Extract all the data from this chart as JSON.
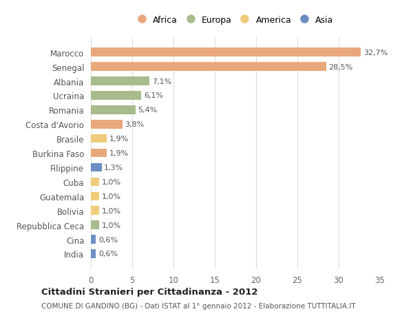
{
  "countries": [
    "Marocco",
    "Senegal",
    "Albania",
    "Ucraina",
    "Romania",
    "Costa d'Avorio",
    "Brasile",
    "Burkina Faso",
    "Filippine",
    "Cuba",
    "Guatemala",
    "Bolivia",
    "Repubblica Ceca",
    "Cina",
    "India"
  ],
  "values": [
    32.7,
    28.5,
    7.1,
    6.1,
    5.4,
    3.8,
    1.9,
    1.9,
    1.3,
    1.0,
    1.0,
    1.0,
    1.0,
    0.6,
    0.6
  ],
  "labels": [
    "32,7%",
    "28,5%",
    "7,1%",
    "6,1%",
    "5,4%",
    "3,8%",
    "1,9%",
    "1,9%",
    "1,3%",
    "1,0%",
    "1,0%",
    "1,0%",
    "1,0%",
    "0,6%",
    "0,6%"
  ],
  "continents": [
    "Africa",
    "Africa",
    "Europa",
    "Europa",
    "Europa",
    "Africa",
    "America",
    "Africa",
    "Asia",
    "America",
    "America",
    "America",
    "Europa",
    "Asia",
    "Asia"
  ],
  "colors": {
    "Africa": "#E8A87C",
    "Europa": "#A8BB8C",
    "America": "#F0CC7A",
    "Asia": "#6B8DC4"
  },
  "legend_order": [
    "Africa",
    "Europa",
    "America",
    "Asia"
  ],
  "title": "Cittadini Stranieri per Cittadinanza - 2012",
  "subtitle": "COMUNE DI GANDINO (BG) - Dati ISTAT al 1° gennaio 2012 - Elaborazione TUTTITALIA.IT",
  "xlim": [
    0,
    35
  ],
  "xticks": [
    0,
    5,
    10,
    15,
    20,
    25,
    30,
    35
  ],
  "background_color": "#ffffff",
  "grid_color": "#dddddd"
}
